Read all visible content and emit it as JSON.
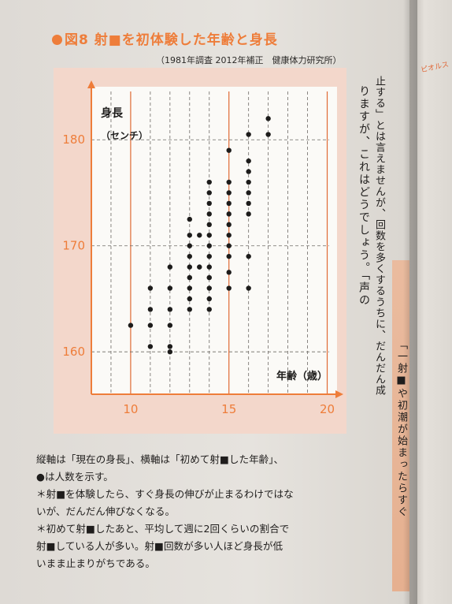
{
  "figure": {
    "title": "図8 射■を初体験した年齢と身長",
    "source": "（1981年調査 2012年補正　健康体力研究所）"
  },
  "chart_data": {
    "type": "scatter",
    "title": "図8 射■を初体験した年齢と身長",
    "xlabel": "年齢（歳）",
    "ylabel": "身長（センチ）",
    "xlim": [
      8,
      20.5
    ],
    "ylim": [
      156,
      185
    ],
    "x_ticks": [
      10,
      15,
      20
    ],
    "y_ticks": [
      160,
      170,
      180
    ],
    "grid": true,
    "points": [
      {
        "x": 10,
        "y": 162.5
      },
      {
        "x": 11,
        "y": 160.5
      },
      {
        "x": 11,
        "y": 162.5
      },
      {
        "x": 11,
        "y": 164
      },
      {
        "x": 11,
        "y": 166
      },
      {
        "x": 12,
        "y": 160
      },
      {
        "x": 12,
        "y": 160.5
      },
      {
        "x": 12,
        "y": 162.5
      },
      {
        "x": 12,
        "y": 164
      },
      {
        "x": 12,
        "y": 166
      },
      {
        "x": 12,
        "y": 168
      },
      {
        "x": 13,
        "y": 164
      },
      {
        "x": 13,
        "y": 165
      },
      {
        "x": 13,
        "y": 166
      },
      {
        "x": 13,
        "y": 167
      },
      {
        "x": 13,
        "y": 168
      },
      {
        "x": 13,
        "y": 169
      },
      {
        "x": 13,
        "y": 170
      },
      {
        "x": 13,
        "y": 171
      },
      {
        "x": 13,
        "y": 172.5
      },
      {
        "x": 13.5,
        "y": 168
      },
      {
        "x": 13.5,
        "y": 171
      },
      {
        "x": 14,
        "y": 164
      },
      {
        "x": 14,
        "y": 165
      },
      {
        "x": 14,
        "y": 166
      },
      {
        "x": 14,
        "y": 167
      },
      {
        "x": 14,
        "y": 168
      },
      {
        "x": 14,
        "y": 169
      },
      {
        "x": 14,
        "y": 170
      },
      {
        "x": 14,
        "y": 171
      },
      {
        "x": 14,
        "y": 172
      },
      {
        "x": 14,
        "y": 173
      },
      {
        "x": 14,
        "y": 174
      },
      {
        "x": 14,
        "y": 175
      },
      {
        "x": 14,
        "y": 176
      },
      {
        "x": 15,
        "y": 166
      },
      {
        "x": 15,
        "y": 167.5
      },
      {
        "x": 15,
        "y": 169
      },
      {
        "x": 15,
        "y": 170
      },
      {
        "x": 15,
        "y": 171
      },
      {
        "x": 15,
        "y": 172
      },
      {
        "x": 15,
        "y": 173
      },
      {
        "x": 15,
        "y": 174
      },
      {
        "x": 15,
        "y": 175
      },
      {
        "x": 15,
        "y": 176
      },
      {
        "x": 15,
        "y": 179
      },
      {
        "x": 16,
        "y": 166
      },
      {
        "x": 16,
        "y": 169
      },
      {
        "x": 16,
        "y": 173
      },
      {
        "x": 16,
        "y": 174
      },
      {
        "x": 16,
        "y": 175
      },
      {
        "x": 16,
        "y": 176
      },
      {
        "x": 16,
        "y": 177
      },
      {
        "x": 16,
        "y": 178
      },
      {
        "x": 16,
        "y": 180.5
      },
      {
        "x": 17,
        "y": 180.5
      },
      {
        "x": 17,
        "y": 182
      }
    ]
  },
  "caption": {
    "lines": [
      "縦軸は「現在の身長」、横軸は「初めて射■した年齢」、",
      "●は人数を示す。",
      "＊射■を体験したら、すぐ身長の伸びが止まるわけではな",
      "いが、だんだん伸びなくなる。",
      "＊初めて射■したあと、平均して週に2回くらいの割合で",
      "射■している人が多い。射■回数が多い人ほど身長が低",
      "いまま止まりがちである。"
    ]
  },
  "body_text": {
    "columns": [
      "りますが、これはどうでしょう。「声の",
      "止する」とは言えませんが、回数を多くするうちに、だんだん成",
      "「一射■や初潮が始まったらすぐ"
    ]
  },
  "next_page": {
    "label": "ピオルス"
  },
  "colors": {
    "accent": "#ee7d3a",
    "panel": "#f3d7cb",
    "grid_major": "#e06a35",
    "dot": "#1d1c1b"
  }
}
